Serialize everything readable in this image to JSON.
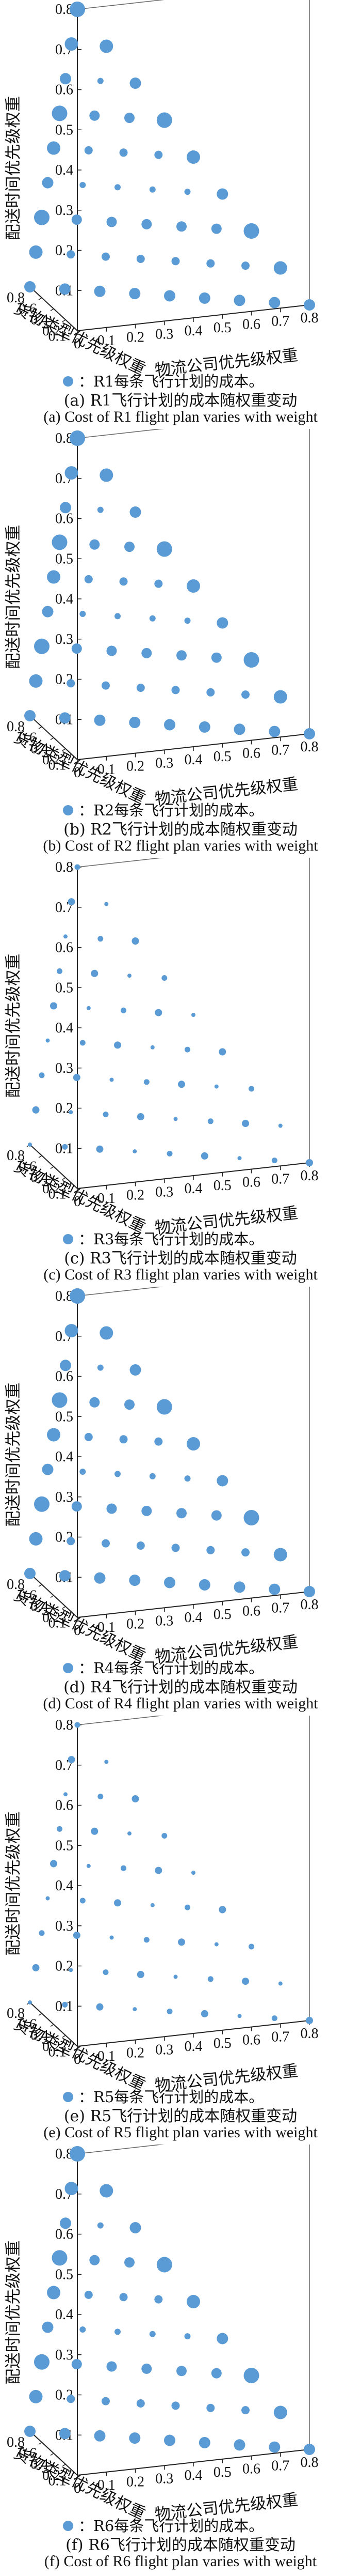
{
  "colors": {
    "point": "#5b9bd5",
    "highlight": "#e8552a",
    "axis": "#222222",
    "grid": "#666666"
  },
  "axes_labels": {
    "x": "物流公司优先级权重",
    "y": "货物类型优先级权重",
    "z": "配送时间优先级权重"
  },
  "chart_data": [
    {
      "type": "scatter",
      "legend": "：R1每条飞行计划的成本。",
      "caption_cn": "(a) R1飞行计划的成本随权重变动",
      "caption_en": "(a) Cost of R1 flight plan varies with weight",
      "xlabel": "物流公司优先级权重",
      "ylabel": "货物类型优先级权重",
      "zlabel": "配送时间优先级权重",
      "xticks": [
        "0",
        "0.1",
        "0.2",
        "0.3",
        "0.4",
        "0.5",
        "0.6",
        "0.7",
        "0.8"
      ],
      "yticks": [
        "0.8",
        "0.6",
        "0.4",
        "0.2",
        "0.1"
      ],
      "zticks": [
        "0.1",
        "0.2",
        "0.3",
        "0.4",
        "0.5",
        "0.6",
        "0.7",
        "0.8"
      ],
      "xlim": [
        0,
        0.8
      ],
      "ylim": [
        0,
        0.8
      ],
      "zlim": [
        0,
        0.8
      ],
      "size_pattern": "ring",
      "highlight": [
        0.1,
        0.1,
        0.4
      ]
    },
    {
      "type": "scatter",
      "legend": "：R2每条飞行计划的成本。",
      "caption_cn": "(b) R2飞行计划的成本随权重变动",
      "caption_en": "(b) Cost of R2 flight plan varies with weight",
      "xlabel": "物流公司优先级权重",
      "ylabel": "货物类型优先级权重",
      "zlabel": "配送时间优先级权重",
      "xticks": [
        "0",
        "0.1",
        "0.2",
        "0.3",
        "0.4",
        "0.5",
        "0.6",
        "0.7",
        "0.8"
      ],
      "yticks": [
        "0.8",
        "0.6",
        "0.4",
        "0.2",
        "0.1"
      ],
      "zticks": [
        "0.1",
        "0.2",
        "0.3",
        "0.4",
        "0.5",
        "0.6",
        "0.7",
        "0.8"
      ],
      "xlim": [
        0,
        0.8
      ],
      "ylim": [
        0,
        0.8
      ],
      "zlim": [
        0,
        0.8
      ],
      "size_pattern": "ring",
      "highlight": [
        0.1,
        0.1,
        0.4
      ]
    },
    {
      "type": "scatter",
      "legend": "：R3每条飞行计划的成本。",
      "caption_cn": "(c) R3飞行计划的成本随权重变动",
      "caption_en": "(c) Cost of R3 flight plan varies with weight",
      "xlabel": "物流公司优先级权重",
      "ylabel": "货物类型优先级权重",
      "zlabel": "配送时间优先级权重",
      "xticks": [
        "0",
        "0.1",
        "0.2",
        "0.3",
        "0.4",
        "0.5",
        "0.6",
        "0.7",
        "0.8"
      ],
      "yticks": [
        "0.8",
        "0.6",
        "0.4",
        "0.2",
        "0.1"
      ],
      "zticks": [
        "0.1",
        "0.2",
        "0.3",
        "0.4",
        "0.5",
        "0.6",
        "0.7",
        "0.8"
      ],
      "xlim": [
        0,
        0.8
      ],
      "ylim": [
        0,
        0.8
      ],
      "zlim": [
        0,
        0.8
      ],
      "size_pattern": "small",
      "highlight": [
        0.1,
        0.1,
        0.4
      ]
    },
    {
      "type": "scatter",
      "legend": "：R4每条飞行计划的成本。",
      "caption_cn": "(d) R4飞行计划的成本随权重变动",
      "caption_en": "(d) Cost of R4 flight plan varies with weight",
      "xlabel": "物流公司优先级权重",
      "ylabel": "货物类型优先级权重",
      "zlabel": "配送时间优先级权重",
      "xticks": [
        "0",
        "0.1",
        "0.2",
        "0.3",
        "0.4",
        "0.5",
        "0.6",
        "0.7",
        "0.8"
      ],
      "yticks": [
        "0.8",
        "0.6",
        "0.4",
        "0.2",
        "0.1"
      ],
      "zticks": [
        "0.1",
        "0.2",
        "0.3",
        "0.4",
        "0.5",
        "0.6",
        "0.7",
        "0.8"
      ],
      "xlim": [
        0,
        0.8
      ],
      "ylim": [
        0,
        0.8
      ],
      "zlim": [
        0,
        0.8
      ],
      "size_pattern": "ring",
      "highlight": [
        0.1,
        0.1,
        0.4
      ]
    },
    {
      "type": "scatter",
      "legend": "：R5每条飞行计划的成本。",
      "caption_cn": "(e) R5飞行计划的成本随权重变动",
      "caption_en": "(e) Cost of R5 flight plan varies with weight",
      "xlabel": "物流公司优先级权重",
      "ylabel": "货物类型优先级权重",
      "zlabel": "配送时间优先级权重",
      "xticks": [
        "0",
        "0.1",
        "0.2",
        "0.3",
        "0.4",
        "0.5",
        "0.6",
        "0.7",
        "0.8"
      ],
      "yticks": [
        "0.8",
        "0.6",
        "0.4",
        "0.2",
        "0.1"
      ],
      "zticks": [
        "0.1",
        "0.2",
        "0.3",
        "0.4",
        "0.5",
        "0.6",
        "0.7",
        "0.8"
      ],
      "xlim": [
        0,
        0.8
      ],
      "ylim": [
        0,
        0.8
      ],
      "zlim": [
        0,
        0.8
      ],
      "size_pattern": "small",
      "highlight": [
        0.1,
        0.1,
        0.4
      ]
    },
    {
      "type": "scatter",
      "legend": "：R6每条飞行计划的成本。",
      "caption_cn": "(f) R6飞行计划的成本随权重变动",
      "caption_en": "(f) Cost of R6 flight plan varies with weight",
      "xlabel": "物流公司优先级权重",
      "ylabel": "货物类型优先级权重",
      "zlabel": "配送时间优先级权重",
      "xticks": [
        "0",
        "0.1",
        "0.2",
        "0.3",
        "0.4",
        "0.5",
        "0.6",
        "0.7",
        "0.8"
      ],
      "yticks": [
        "0.8",
        "0.6",
        "0.4",
        "0.2",
        "0.1"
      ],
      "zticks": [
        "0.1",
        "0.2",
        "0.3",
        "0.4",
        "0.5",
        "0.6",
        "0.7",
        "0.8"
      ],
      "xlim": [
        0,
        0.8
      ],
      "ylim": [
        0,
        0.8
      ],
      "zlim": [
        0,
        0.8
      ],
      "size_pattern": "ring",
      "highlight": [
        0.1,
        0.1,
        0.4
      ]
    }
  ]
}
